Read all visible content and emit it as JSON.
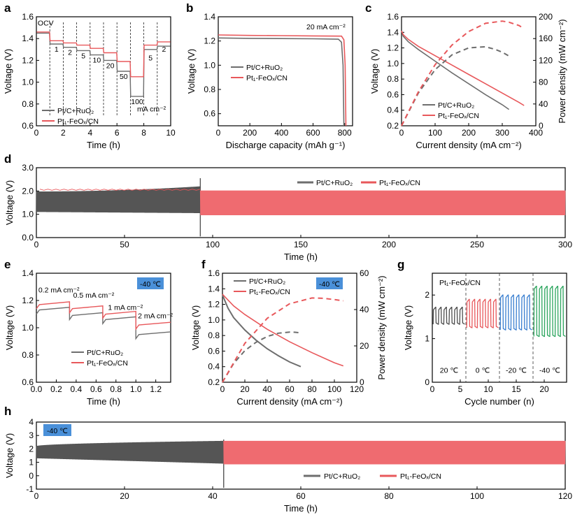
{
  "colors": {
    "pt": "#e8585b",
    "pt_band": "#ef6b70",
    "ref": "#6e6e6e",
    "ref_band": "#555555",
    "box": "#4a90d9",
    "g20": "#4d4d4d",
    "g0": "#e8585b",
    "gm20": "#3a7fd0",
    "gm40": "#2ca55e"
  },
  "chart_data": [
    {
      "panel": "a",
      "type": "line",
      "xlabel": "Time (h)",
      "ylabel": "Voltage (V)",
      "xlim": [
        0,
        10
      ],
      "ylim": [
        0.6,
        1.6
      ],
      "xticks": [
        "0",
        "2",
        "4",
        "6",
        "8",
        "10"
      ],
      "yticks": [
        "0.6",
        "0.8",
        "1.0",
        "1.2",
        "1.4",
        "1.6"
      ],
      "segment_bounds": [
        0,
        1,
        2,
        3,
        4,
        5,
        6,
        7,
        8,
        9,
        10
      ],
      "annotations": [
        "OCV",
        "1",
        "2",
        "5",
        "10",
        "20",
        "50",
        "100",
        "5",
        "2",
        "mA cm⁻²"
      ],
      "series": [
        {
          "name": "Pt/C+RuO₂",
          "values": [
            1.45,
            1.35,
            1.32,
            1.29,
            1.25,
            1.2,
            1.1,
            0.87,
            1.3,
            1.33
          ]
        },
        {
          "name": "Pt₁-FeOₓ/CN",
          "values": [
            1.46,
            1.38,
            1.36,
            1.34,
            1.31,
            1.27,
            1.19,
            1.05,
            1.34,
            1.37
          ]
        }
      ]
    },
    {
      "panel": "b",
      "type": "line",
      "xlabel": "Discharge capacity (mAh g⁻¹)",
      "ylabel": "Voltage (V)",
      "xlim": [
        0,
        850
      ],
      "ylim": [
        0.5,
        1.4
      ],
      "xticks": [
        "0",
        "200",
        "400",
        "600",
        "800"
      ],
      "yticks": [
        "0.6",
        "0.8",
        "1.0",
        "1.2",
        "1.4"
      ],
      "annotation": "20 mA cm⁻²",
      "series": [
        {
          "name": "Pt/C+RuO₂",
          "x": [
            0,
            200,
            400,
            600,
            760,
            780,
            790,
            795
          ],
          "values": [
            1.225,
            1.222,
            1.22,
            1.218,
            1.215,
            1.19,
            1.0,
            0.5
          ]
        },
        {
          "name": "Pt₁-FeOₓ/CN",
          "x": [
            0,
            200,
            400,
            600,
            780,
            795,
            803,
            808
          ],
          "values": [
            1.25,
            1.246,
            1.244,
            1.242,
            1.24,
            1.21,
            1.0,
            0.5
          ]
        }
      ]
    },
    {
      "panel": "c",
      "type": "line",
      "xlabel": "Current density (mA cm⁻²)",
      "ylabel": "Voltage (V)",
      "y2label": "Power density (mW cm⁻²)",
      "xlim": [
        0,
        400
      ],
      "ylim": [
        0.2,
        1.6
      ],
      "y2lim": [
        0,
        200
      ],
      "xticks": [
        "0",
        "100",
        "200",
        "300",
        "400"
      ],
      "yticks": [
        "0.2",
        "0.4",
        "0.6",
        "0.8",
        "1.0",
        "1.2",
        "1.4",
        "1.6"
      ],
      "y2ticks": [
        "0",
        "40",
        "80",
        "120",
        "160",
        "200"
      ],
      "series": [
        {
          "name": "Pt/C+RuO₂",
          "x": [
            0,
            5,
            20,
            50,
            100,
            150,
            200,
            250,
            300,
            320
          ],
          "values": [
            1.42,
            1.35,
            1.28,
            1.18,
            1.03,
            0.88,
            0.74,
            0.6,
            0.47,
            0.41
          ]
        },
        {
          "name": "Pt₁-FeOₓ/CN",
          "x": [
            0,
            5,
            20,
            50,
            100,
            150,
            200,
            250,
            300,
            350,
            365
          ],
          "values": [
            1.42,
            1.37,
            1.31,
            1.22,
            1.1,
            0.98,
            0.86,
            0.74,
            0.62,
            0.5,
            0.46
          ]
        },
        {
          "name": "Pt/C+RuO₂ power",
          "x": [
            0,
            50,
            100,
            150,
            200,
            250,
            280,
            300,
            320
          ],
          "values": [
            0,
            60,
            103,
            130,
            143,
            145,
            140,
            135,
            128
          ]
        },
        {
          "name": "Pt₁-FeOₓ/CN power",
          "x": [
            0,
            50,
            100,
            150,
            200,
            250,
            300,
            320,
            350,
            365
          ],
          "values": [
            0,
            62,
            112,
            148,
            173,
            188,
            192,
            190,
            184,
            178
          ]
        }
      ]
    },
    {
      "panel": "d",
      "type": "line",
      "xlabel": "Time (h)",
      "ylabel": "Voltage (V)",
      "xlim": [
        0,
        300
      ],
      "ylim": [
        0,
        3
      ],
      "xticks": [
        "0",
        "50",
        "100",
        "150",
        "200",
        "250",
        "300"
      ],
      "yticks": [
        "0.0",
        "1.0",
        "2.0",
        "3.0"
      ],
      "series": [
        {
          "name": "Pt/C+RuO₂",
          "x_range": [
            0,
            93
          ],
          "upper_start": 1.98,
          "upper_end": 2.2,
          "lower_start": 1.1,
          "lower_end": 1.05,
          "end_spike": [
            0.05,
            2.55
          ]
        },
        {
          "name": "Pt₁-FeOₓ/CN",
          "x_range": [
            93,
            300
          ],
          "upper": 2.02,
          "lower": 0.96,
          "early_upper": 2.08
        }
      ]
    },
    {
      "panel": "e",
      "type": "line",
      "xlabel": "Time (h)",
      "ylabel": "Voltage (V)",
      "xlim": [
        0,
        1.35
      ],
      "ylim": [
        0.6,
        1.4
      ],
      "xticks": [
        "0.0",
        "0.2",
        "0.4",
        "0.6",
        "0.8",
        "1.0",
        "1.2"
      ],
      "yticks": [
        "0.6",
        "0.8",
        "1.0",
        "1.2",
        "1.4"
      ],
      "box_label": "-40 ℃",
      "annotations": [
        "0.2 mA cm⁻²",
        "0.5 mA cm⁻²",
        "1 mA cm⁻²",
        "2 mA cm⁻²"
      ],
      "step_bounds": [
        0,
        0.333,
        0.667,
        1.0,
        1.35
      ],
      "series": [
        {
          "name": "Pt/C+RuO₂",
          "values": [
            1.14,
            1.1,
            1.07,
            0.96
          ]
        },
        {
          "name": "Pt₁-FeOₓ/CN",
          "values": [
            1.18,
            1.15,
            1.11,
            1.03
          ]
        }
      ]
    },
    {
      "panel": "f",
      "type": "line",
      "xlabel": "Current density (mA cm⁻²)",
      "ylabel": "Voltage (V)",
      "y2label": "Power density (mW cm⁻²)",
      "xlim": [
        0,
        120
      ],
      "ylim": [
        0.2,
        1.6
      ],
      "y2lim": [
        0,
        60
      ],
      "xticks": [
        "0",
        "20",
        "40",
        "60",
        "80",
        "100",
        "120"
      ],
      "yticks": [
        "0.2",
        "0.4",
        "0.6",
        "0.8",
        "1.0",
        "1.2",
        "1.4",
        "1.6"
      ],
      "y2ticks": [
        "0",
        "20",
        "40",
        "60"
      ],
      "box_label": "-40 ℃",
      "series": [
        {
          "name": "Pt/C+RuO₂",
          "x": [
            0,
            5,
            10,
            20,
            30,
            40,
            50,
            60,
            70
          ],
          "values": [
            1.32,
            1.15,
            1.03,
            0.87,
            0.74,
            0.63,
            0.54,
            0.46,
            0.4
          ]
        },
        {
          "name": "Pt₁-FeOₓ/CN",
          "x": [
            0,
            10,
            20,
            40,
            60,
            80,
            100,
            108
          ],
          "values": [
            1.33,
            1.18,
            1.07,
            0.88,
            0.72,
            0.58,
            0.45,
            0.41
          ]
        },
        {
          "name": "Pt/C+RuO₂ power",
          "x": [
            0,
            10,
            20,
            30,
            40,
            50,
            60,
            65,
            70
          ],
          "values": [
            0,
            10.3,
            17.4,
            22,
            25.2,
            27,
            27.6,
            27.5,
            27.2
          ]
        },
        {
          "name": "Pt₁-FeOₓ/CN power",
          "x": [
            0,
            20,
            40,
            60,
            80,
            90,
            100,
            108
          ],
          "values": [
            0,
            21.4,
            35.2,
            43.2,
            46.4,
            46.2,
            45.5,
            44.8
          ]
        }
      ]
    },
    {
      "panel": "g",
      "type": "line",
      "xlabel": "Cycle number (n)",
      "ylabel": "Voltage (V)",
      "xlim": [
        0,
        24
      ],
      "ylim": [
        0,
        2.5
      ],
      "xticks": [
        "0",
        "5",
        "10",
        "15",
        "20"
      ],
      "yticks": [
        "0",
        "1",
        "2"
      ],
      "title": "Pt₁-FeOₓ/CN",
      "segments": [
        {
          "label": "20 ℃",
          "range": [
            0,
            6
          ],
          "high": 1.72,
          "low": 1.33
        },
        {
          "label": "0 ℃",
          "range": [
            6,
            12
          ],
          "high": 1.9,
          "low": 1.25
        },
        {
          "label": "-20 ℃",
          "range": [
            12,
            18
          ],
          "high": 2.0,
          "low": 1.2
        },
        {
          "label": "-40 ℃",
          "range": [
            18,
            24
          ],
          "high": 2.2,
          "low": 1.05
        }
      ]
    },
    {
      "panel": "h",
      "type": "line",
      "xlabel": "Time (h)",
      "ylabel": "Voltage (V)",
      "xlim": [
        0,
        120
      ],
      "ylim": [
        -1,
        4
      ],
      "xticks": [
        "0",
        "20",
        "40",
        "60",
        "80",
        "100",
        "120"
      ],
      "yticks": [
        "-1",
        "0",
        "1",
        "2",
        "3",
        "4"
      ],
      "box_label": "-40 ℃",
      "series": [
        {
          "name": "Pt/C+RuO₂",
          "x_range": [
            0,
            42.5
          ],
          "upper_start": 2.2,
          "upper_end": 2.6,
          "lower_start": 1.3,
          "lower_end": 0.9,
          "end_spike": [
            -0.9,
            2.7
          ]
        },
        {
          "name": "Pt₁-FeOₓ/CN",
          "x_range": [
            42.5,
            120
          ],
          "upper": 2.6,
          "lower": 0.85
        }
      ]
    }
  ]
}
